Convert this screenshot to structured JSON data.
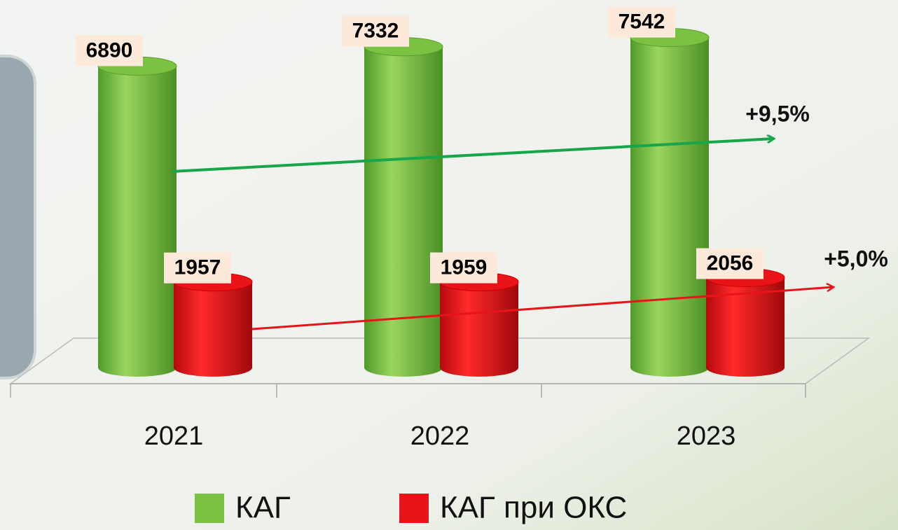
{
  "chart_data": {
    "type": "cylinder-bar",
    "categories": [
      "2021",
      "2022",
      "2023"
    ],
    "series": [
      {
        "name": "КАГ",
        "color": "#7cc242",
        "values": [
          6890,
          7332,
          7542
        ]
      },
      {
        "name": "КАГ при ОКС",
        "color": "#e8141a",
        "values": [
          1957,
          1959,
          2056
        ]
      }
    ],
    "ylim": [
      0,
      8000
    ],
    "annotations": [
      "+9,5%",
      "+5,0%"
    ]
  }
}
